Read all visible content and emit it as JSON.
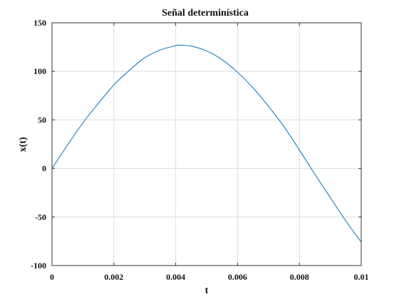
{
  "chart_data": {
    "type": "line",
    "title": "Señal determinística",
    "xlabel": "t",
    "ylabel": "x(t)",
    "xlim": [
      0,
      0.01
    ],
    "ylim": [
      -100,
      150
    ],
    "xticks": [
      0,
      0.002,
      0.004,
      0.006,
      0.008,
      0.01
    ],
    "xtick_labels": [
      "0",
      "0.002",
      "0.004",
      "0.006",
      "0.008",
      "0.01"
    ],
    "yticks": [
      -100,
      -50,
      0,
      50,
      100,
      150
    ],
    "ytick_labels": [
      "-100",
      "-50",
      "0",
      "50",
      "100",
      "150"
    ],
    "grid": true,
    "series": [
      {
        "color": "#0072bd",
        "x": [
          0,
          0.0005,
          0.001,
          0.0015,
          0.002,
          0.0025,
          0.003,
          0.0035,
          0.004,
          0.0041,
          0.0045,
          0.005,
          0.0055,
          0.006,
          0.0065,
          0.007,
          0.0075,
          0.008,
          0.0085,
          0.009,
          0.0095,
          0.01
        ],
        "y": [
          0,
          24,
          47,
          67,
          86,
          101,
          114,
          122,
          126.5,
          127,
          126,
          121,
          112,
          99,
          83,
          64,
          43,
          19,
          -6,
          -30,
          -54,
          -76
        ]
      }
    ]
  }
}
